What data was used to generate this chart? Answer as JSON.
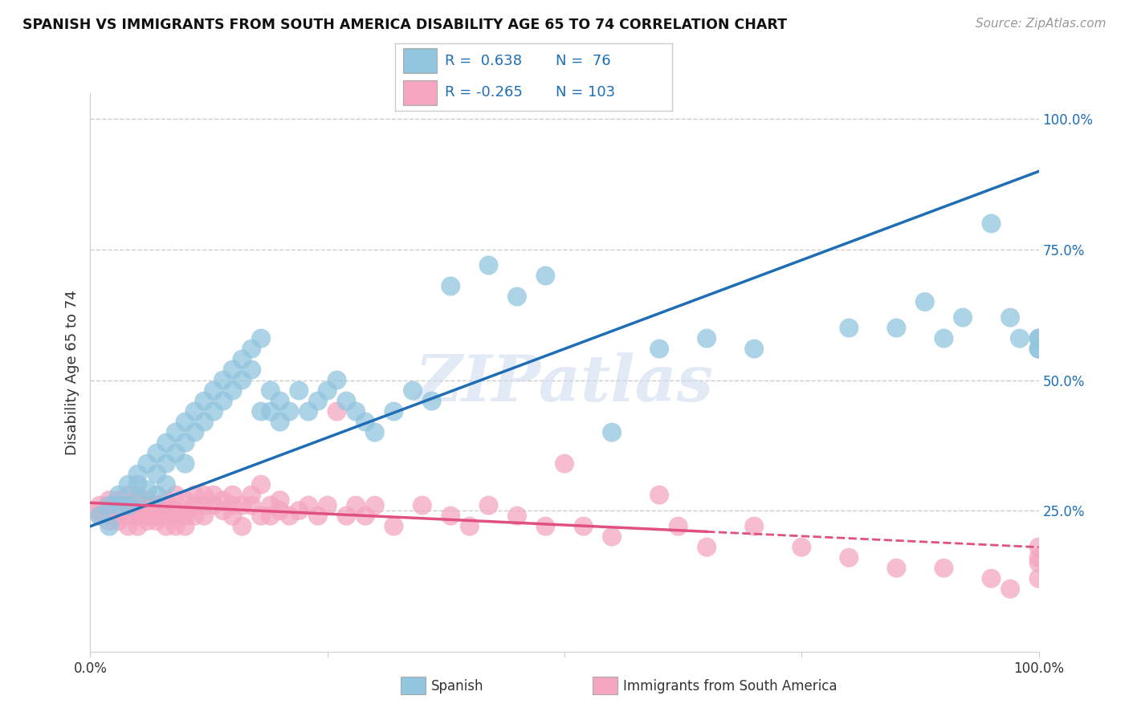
{
  "title": "SPANISH VS IMMIGRANTS FROM SOUTH AMERICA DISABILITY AGE 65 TO 74 CORRELATION CHART",
  "source": "Source: ZipAtlas.com",
  "ylabel": "Disability Age 65 to 74",
  "legend_label_blue": "Spanish",
  "legend_label_pink": "Immigrants from South America",
  "r_blue": 0.638,
  "n_blue": 76,
  "r_pink": -0.265,
  "n_pink": 103,
  "color_blue": "#92c5de",
  "color_pink": "#f4a6c0",
  "line_color_blue": "#1f6eb5",
  "line_color_pink": "#e05080",
  "watermark": "ZIPatlas",
  "blue_x": [
    0.01,
    0.02,
    0.02,
    0.03,
    0.03,
    0.04,
    0.04,
    0.05,
    0.05,
    0.05,
    0.06,
    0.06,
    0.07,
    0.07,
    0.07,
    0.08,
    0.08,
    0.08,
    0.09,
    0.09,
    0.1,
    0.1,
    0.1,
    0.11,
    0.11,
    0.12,
    0.12,
    0.13,
    0.13,
    0.14,
    0.14,
    0.15,
    0.15,
    0.16,
    0.16,
    0.17,
    0.17,
    0.18,
    0.18,
    0.19,
    0.19,
    0.2,
    0.2,
    0.21,
    0.22,
    0.23,
    0.24,
    0.25,
    0.26,
    0.27,
    0.28,
    0.29,
    0.3,
    0.32,
    0.34,
    0.36,
    0.38,
    0.42,
    0.45,
    0.48,
    0.55,
    0.6,
    0.65,
    0.7,
    0.8,
    0.85,
    0.88,
    0.9,
    0.92,
    0.95,
    0.97,
    0.98,
    1.0,
    1.0,
    1.0,
    1.0
  ],
  "blue_y": [
    0.24,
    0.26,
    0.22,
    0.26,
    0.28,
    0.3,
    0.26,
    0.3,
    0.27,
    0.32,
    0.34,
    0.29,
    0.36,
    0.32,
    0.28,
    0.38,
    0.34,
    0.3,
    0.4,
    0.36,
    0.42,
    0.38,
    0.34,
    0.44,
    0.4,
    0.46,
    0.42,
    0.48,
    0.44,
    0.5,
    0.46,
    0.52,
    0.48,
    0.54,
    0.5,
    0.56,
    0.52,
    0.58,
    0.44,
    0.48,
    0.44,
    0.46,
    0.42,
    0.44,
    0.48,
    0.44,
    0.46,
    0.48,
    0.5,
    0.46,
    0.44,
    0.42,
    0.4,
    0.44,
    0.48,
    0.46,
    0.68,
    0.72,
    0.66,
    0.7,
    0.4,
    0.56,
    0.58,
    0.56,
    0.6,
    0.6,
    0.65,
    0.58,
    0.62,
    0.8,
    0.62,
    0.58,
    0.56,
    0.58,
    0.56,
    0.58
  ],
  "pink_x": [
    0.01,
    0.01,
    0.01,
    0.02,
    0.02,
    0.02,
    0.02,
    0.02,
    0.03,
    0.03,
    0.03,
    0.03,
    0.03,
    0.04,
    0.04,
    0.04,
    0.04,
    0.04,
    0.05,
    0.05,
    0.05,
    0.05,
    0.05,
    0.06,
    0.06,
    0.06,
    0.06,
    0.06,
    0.07,
    0.07,
    0.07,
    0.07,
    0.07,
    0.08,
    0.08,
    0.08,
    0.08,
    0.08,
    0.09,
    0.09,
    0.09,
    0.09,
    0.1,
    0.1,
    0.1,
    0.1,
    0.11,
    0.11,
    0.11,
    0.12,
    0.12,
    0.12,
    0.13,
    0.13,
    0.14,
    0.14,
    0.15,
    0.15,
    0.15,
    0.16,
    0.16,
    0.17,
    0.17,
    0.18,
    0.18,
    0.19,
    0.19,
    0.2,
    0.2,
    0.21,
    0.22,
    0.23,
    0.24,
    0.25,
    0.26,
    0.27,
    0.28,
    0.29,
    0.3,
    0.32,
    0.35,
    0.38,
    0.4,
    0.42,
    0.45,
    0.48,
    0.5,
    0.52,
    0.55,
    0.6,
    0.62,
    0.65,
    0.7,
    0.75,
    0.8,
    0.85,
    0.9,
    0.95,
    0.97,
    1.0,
    1.0,
    1.0,
    1.0
  ],
  "pink_y": [
    0.26,
    0.25,
    0.24,
    0.27,
    0.25,
    0.24,
    0.26,
    0.23,
    0.27,
    0.25,
    0.24,
    0.26,
    0.23,
    0.28,
    0.26,
    0.25,
    0.24,
    0.22,
    0.28,
    0.26,
    0.25,
    0.24,
    0.22,
    0.27,
    0.25,
    0.24,
    0.26,
    0.23,
    0.26,
    0.25,
    0.24,
    0.26,
    0.23,
    0.27,
    0.25,
    0.24,
    0.22,
    0.26,
    0.28,
    0.25,
    0.24,
    0.22,
    0.27,
    0.25,
    0.24,
    0.22,
    0.26,
    0.28,
    0.24,
    0.26,
    0.28,
    0.24,
    0.26,
    0.28,
    0.25,
    0.27,
    0.26,
    0.24,
    0.28,
    0.26,
    0.22,
    0.28,
    0.26,
    0.24,
    0.3,
    0.26,
    0.24,
    0.27,
    0.25,
    0.24,
    0.25,
    0.26,
    0.24,
    0.26,
    0.44,
    0.24,
    0.26,
    0.24,
    0.26,
    0.22,
    0.26,
    0.24,
    0.22,
    0.26,
    0.24,
    0.22,
    0.34,
    0.22,
    0.2,
    0.28,
    0.22,
    0.18,
    0.22,
    0.18,
    0.16,
    0.14,
    0.14,
    0.12,
    0.1,
    0.15,
    0.12,
    0.18,
    0.16
  ]
}
